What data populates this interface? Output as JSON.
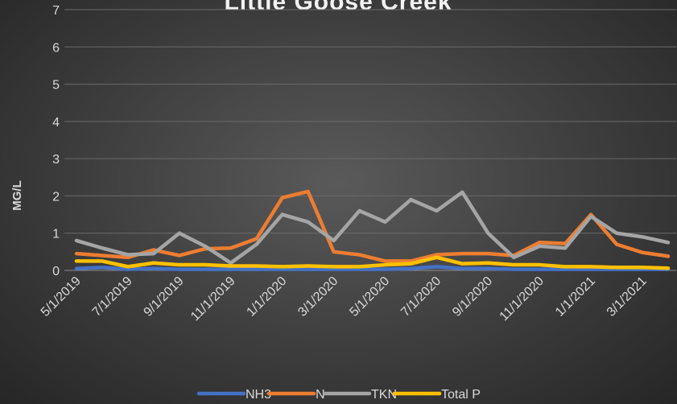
{
  "chart_data": {
    "type": "line",
    "title": "Little Goose Creek",
    "y_label": "MG/L",
    "categories": [
      "5/1/2019",
      null,
      "7/1/2019",
      null,
      "9/1/2019",
      null,
      "11/1/2019",
      null,
      "1/1/2020",
      null,
      "3/1/2020",
      null,
      "5/1/2020",
      null,
      "7/1/2020",
      null,
      "9/1/2020",
      null,
      "11/1/2020",
      null,
      "1/1/2021",
      null,
      "3/1/2021",
      null
    ],
    "series": [
      {
        "name": "NH3",
        "color": "#4472c4",
        "values": [
          0.05,
          0.08,
          0.03,
          0.05,
          0.03,
          0.03,
          0.03,
          0.03,
          0.03,
          0.03,
          0.03,
          0.03,
          0.03,
          0.05,
          0.1,
          0.05,
          0.05,
          0.03,
          0.03,
          0.03,
          0.03,
          0.03,
          0.03,
          0.03
        ]
      },
      {
        "name": "N",
        "color": "#ed7d31",
        "values": [
          0.45,
          0.4,
          0.35,
          0.55,
          0.4,
          0.58,
          0.6,
          0.85,
          1.95,
          2.12,
          0.5,
          0.42,
          0.25,
          0.25,
          0.42,
          0.45,
          0.45,
          0.4,
          0.75,
          0.72,
          1.5,
          0.7,
          0.48,
          0.38
        ]
      },
      {
        "name": "TKN",
        "color": "#a5a5a5",
        "values": [
          0.8,
          0.6,
          0.42,
          0.45,
          1.0,
          0.65,
          0.2,
          0.7,
          1.5,
          1.3,
          0.8,
          1.6,
          1.3,
          1.9,
          1.6,
          2.1,
          1.0,
          0.35,
          0.65,
          0.6,
          1.45,
          1.0,
          0.9,
          0.75
        ]
      },
      {
        "name": "Total P",
        "color": "#ffc000",
        "values": [
          0.25,
          0.25,
          0.1,
          0.2,
          0.15,
          0.15,
          0.12,
          0.12,
          0.1,
          0.12,
          0.1,
          0.1,
          0.15,
          0.18,
          0.35,
          0.18,
          0.2,
          0.15,
          0.15,
          0.1,
          0.1,
          0.08,
          0.08,
          0.06
        ]
      }
    ],
    "ylim": [
      0,
      7
    ],
    "yticks": [
      0,
      1,
      2,
      3,
      4,
      5,
      6,
      7
    ],
    "grid": true,
    "legend": "bottom"
  }
}
